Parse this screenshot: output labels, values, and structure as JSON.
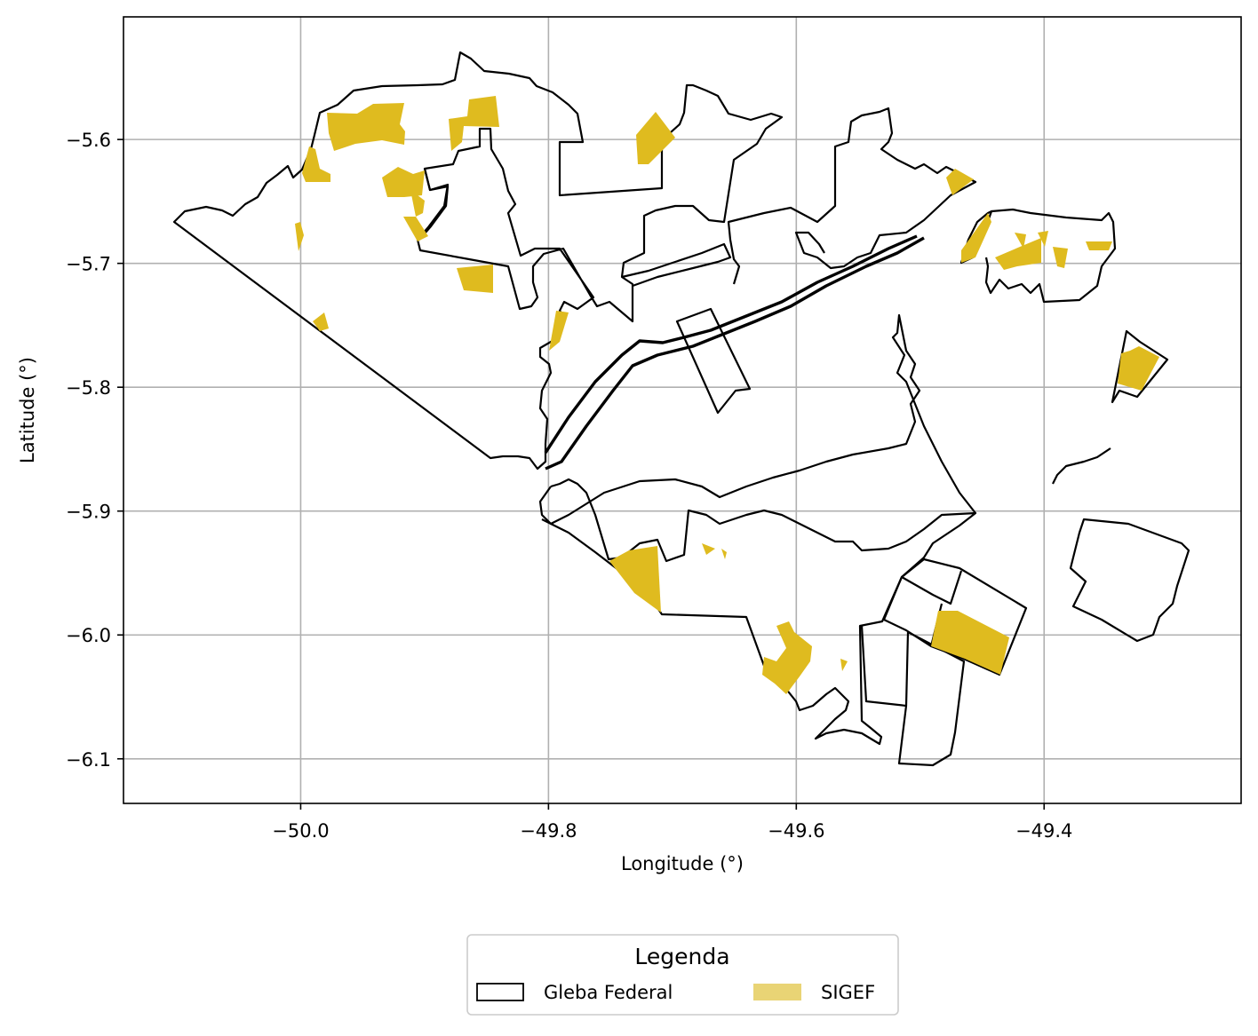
{
  "colors": {
    "sigef": "#DFBB1F",
    "sigef_legend": "#E9D475",
    "gleba_edge": "#000000",
    "grid": "#b0b0b0"
  },
  "chart_data": {
    "type": "map",
    "xlabel": "Longitude (°)",
    "ylabel": "Latitude (°)",
    "xlim": [
      -50.143,
      -49.241
    ],
    "ylim": [
      -6.136,
      -5.501
    ],
    "x_ticks": [
      {
        "value": -50.0,
        "label": "−50.0"
      },
      {
        "value": -49.8,
        "label": "−49.8"
      },
      {
        "value": -49.6,
        "label": "−49.6"
      },
      {
        "value": -49.4,
        "label": "−49.4"
      }
    ],
    "y_ticks": [
      {
        "value": -5.6,
        "label": "−5.6"
      },
      {
        "value": -5.7,
        "label": "−5.7"
      },
      {
        "value": -5.8,
        "label": "−5.8"
      },
      {
        "value": -5.9,
        "label": "−5.9"
      },
      {
        "value": -6.0,
        "label": "−6.0"
      },
      {
        "value": -6.1,
        "label": "−6.1"
      }
    ],
    "grid": true,
    "legend": {
      "title": "Legenda",
      "placement": "bottom-center, below axes",
      "entries": [
        {
          "label": "Gleba Federal",
          "style": "outline"
        },
        {
          "label": "SIGEF",
          "style": "fill"
        }
      ]
    },
    "layers": [
      {
        "name": "Gleba Federal",
        "style": "black outline polygons",
        "approx_extent": {
          "lon": [
            -50.103,
            -49.281
          ],
          "lat": [
            -6.108,
            -5.528
          ]
        }
      },
      {
        "name": "SIGEF",
        "style": "gold filled polygons"
      }
    ]
  }
}
